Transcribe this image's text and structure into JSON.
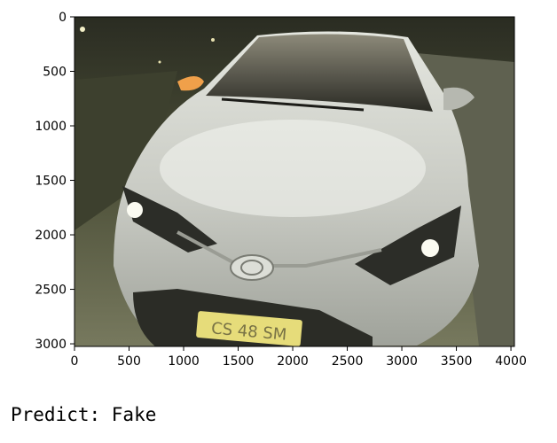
{
  "image_axes": {
    "x_ticks": [
      "0",
      "500",
      "1000",
      "1500",
      "2000",
      "2500",
      "3000",
      "3500",
      "4000"
    ],
    "y_ticks": [
      "0",
      "500",
      "1000",
      "1500",
      "2000",
      "2500",
      "3000"
    ],
    "x_range": [
      0,
      4032
    ],
    "y_range": [
      0,
      3024
    ]
  },
  "photo": {
    "subject": "silver Toyota sedan front view at night",
    "brand_badge": "Toyota",
    "plate_text": "CS 48 SM",
    "colors": {
      "body": "#c9cbc4",
      "background": "#3a3d2c",
      "plate": "#e6dc7a"
    }
  },
  "caption": {
    "text": "Predict: Fake"
  }
}
